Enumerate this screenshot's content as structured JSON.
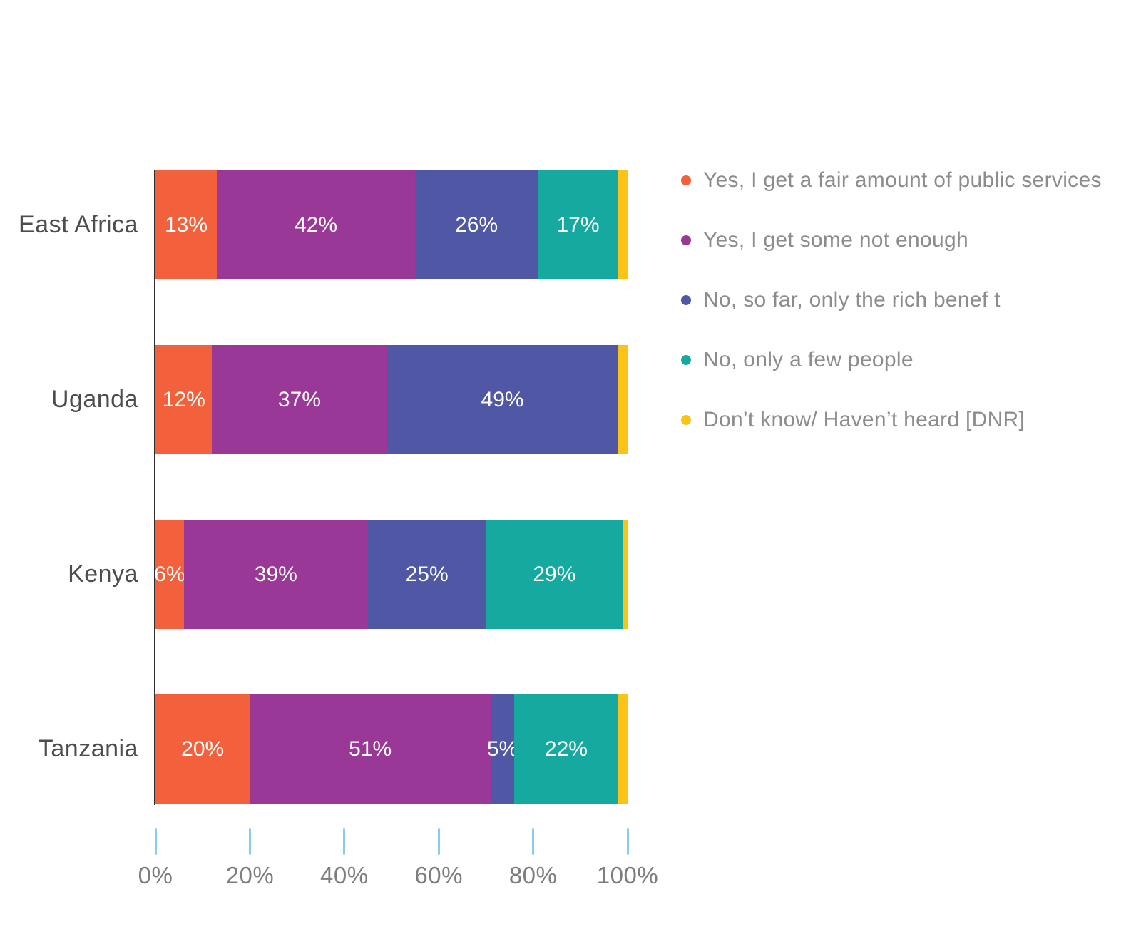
{
  "chart_data": {
    "type": "bar",
    "orientation": "horizontal",
    "stacked": true,
    "unit": "%",
    "grid": false,
    "legend_position": "right",
    "bar_label_min_value": 5,
    "categories": [
      "East Africa",
      "Uganda",
      "Kenya",
      "Tanzania"
    ],
    "series": [
      {
        "name": "Yes, I get a fair amount of public services",
        "color": "#F2603C",
        "values": [
          13,
          12,
          6,
          20
        ]
      },
      {
        "name": "Yes, I get some not enough",
        "color": "#9A3897",
        "values": [
          42,
          37,
          39,
          51
        ]
      },
      {
        "name": "No, so far, only the rich benef t",
        "color": "#5058A5",
        "values": [
          26,
          49,
          25,
          5
        ]
      },
      {
        "name": "No, only a few people",
        "color": "#16A9A0",
        "values": [
          17,
          0,
          29,
          22
        ]
      },
      {
        "name": "Don’t know/ Haven’t heard [DNR]",
        "color": "#FCC317",
        "values": [
          2,
          2,
          1,
          2
        ]
      }
    ],
    "x_axis": {
      "range": [
        0,
        100
      ],
      "tick_labels": [
        "0%",
        "20%",
        "40%",
        "60%",
        "80%",
        "100%"
      ],
      "tick_color": "#8DCAEB"
    },
    "colors": {
      "axis_line": "#2E2E2E",
      "category_label": "#4D4D4D",
      "tick_label": "#7D7D7D",
      "legend_text": "#8C8C8C",
      "bar_value_label": "#FFFFFF",
      "background": "#FFFFFF"
    }
  }
}
